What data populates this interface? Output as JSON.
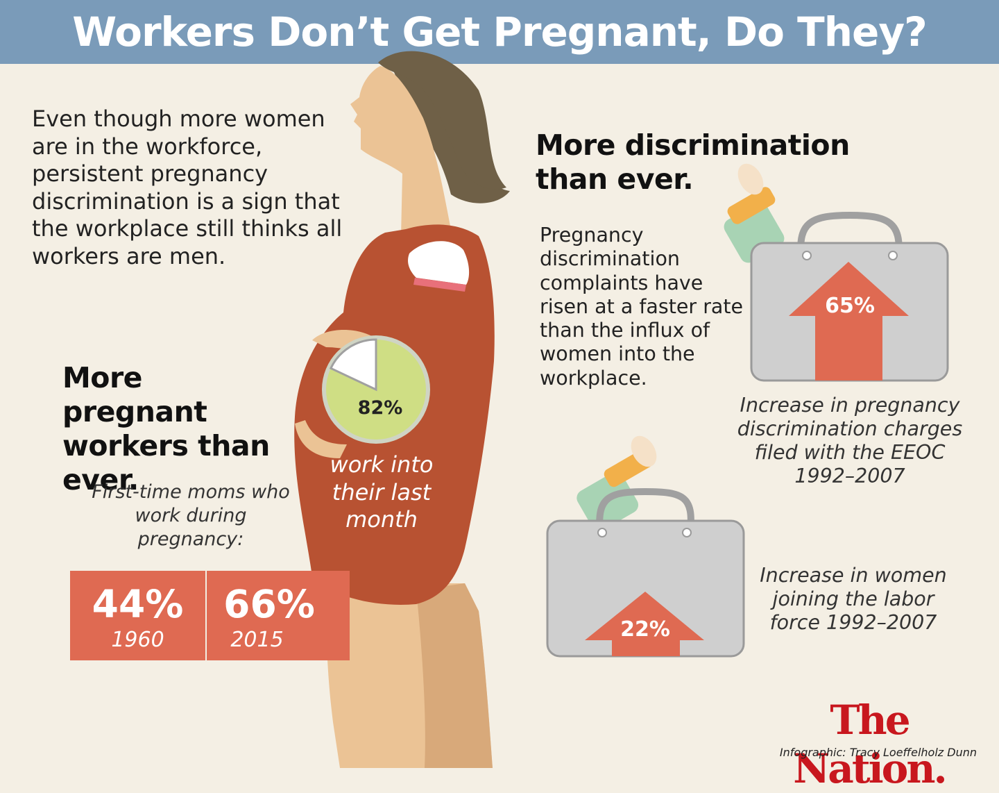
{
  "title": "Workers Don’t Get Pregnant, Do They?",
  "intro": "Even though more women are in the workforce, persistent pregnancy discrimination is a sign that the workplace still thinks all workers are men.",
  "left_section": {
    "heading": "More pregnant workers than ever.",
    "subheading": "First-time moms who work during pregnancy:",
    "stats": [
      {
        "value": "44%",
        "year": "1960"
      },
      {
        "value": "66%",
        "year": "2015"
      }
    ]
  },
  "pie": {
    "value": 82,
    "label": "82%",
    "caption": "work into their last month"
  },
  "right_section": {
    "heading": "More discrimination than ever.",
    "body": "Pregnancy discrimination complaints have risen at a faster rate than the influx of women into the workplace.",
    "items": [
      {
        "value": "65%",
        "caption": "Increase in pregnancy discrimination charges filed with the EEOC 1992–2007"
      },
      {
        "value": "22%",
        "caption": "Increase in women joining the labor force 1992–2007"
      }
    ]
  },
  "logo": "The Nation.",
  "credit": "Infographic: Tracy Loeffelholz Dunn",
  "colors": {
    "header": "#7a9bb9",
    "background": "#f4efe4",
    "accent": "#df6a52",
    "dress": "#b85232",
    "pie": "#cfde84",
    "briefcase": "#cfcfcf"
  },
  "icons": [
    "pregnant-woman-illustration",
    "baby-bottle-icon",
    "briefcase-icon",
    "up-arrow-icon"
  ]
}
